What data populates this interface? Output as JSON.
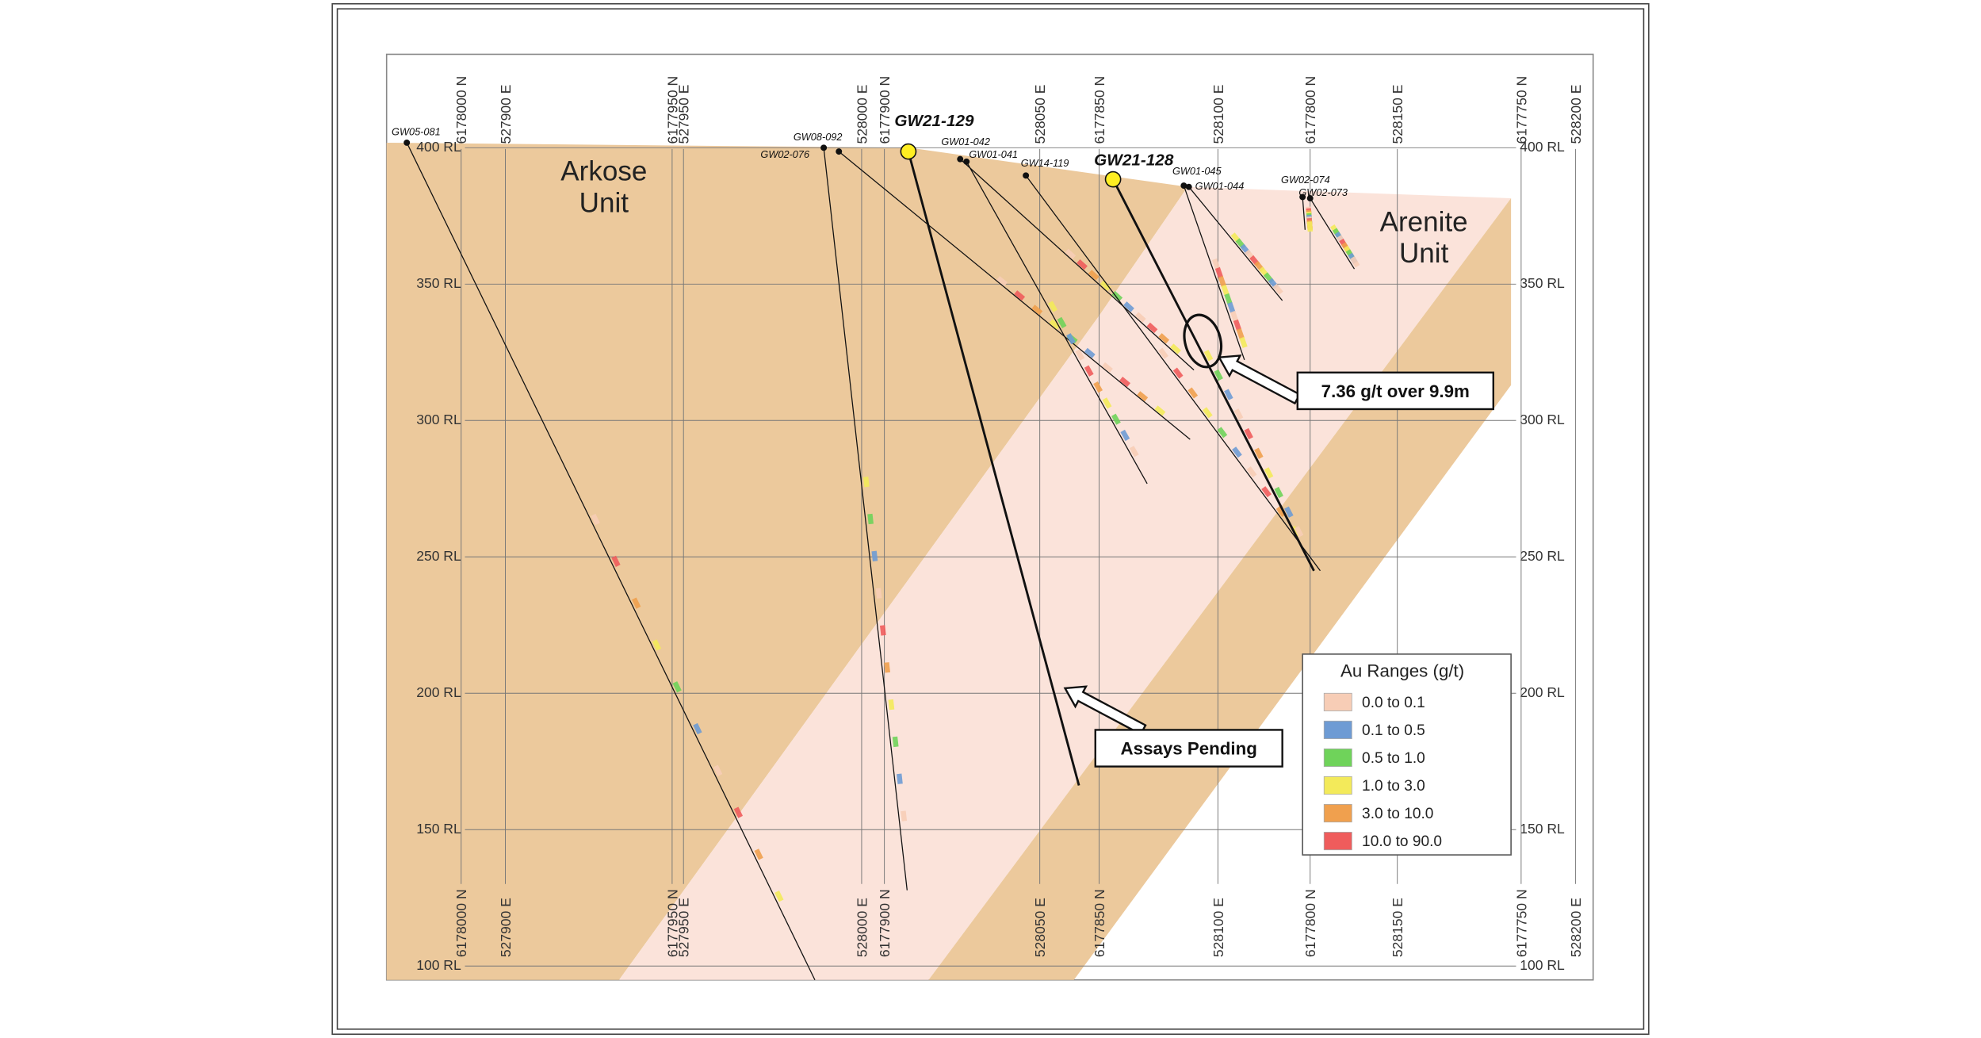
{
  "units": [
    {
      "lines": [
        "Arkose",
        "Unit"
      ]
    },
    {
      "lines": [
        "Arenite",
        "Unit"
      ]
    }
  ],
  "elevations": [
    "400 RL",
    "350 RL",
    "300 RL",
    "250 RL",
    "200 RL",
    "150 RL",
    "100 RL"
  ],
  "grid_labels": [
    "6178000 N",
    "527900 E",
    "6177950 N",
    "527950 E",
    "528000 E",
    "6177900 N",
    "528050 E",
    "6177850 N",
    "528100 E",
    "6177800 N",
    "528150 E",
    "6177750 N",
    "528200 E"
  ],
  "holes": [
    "GW05-081",
    "GW08-092",
    "GW02-076",
    "GW21-129",
    "GW01-042",
    "GW01-041",
    "GW14-119",
    "GW21-128",
    "GW01-045",
    "GW01-044",
    "GW02-074",
    "GW02-073"
  ],
  "legend": {
    "title": "Au Ranges (g/t)",
    "items": [
      {
        "label": "0.0 to 0.1",
        "color": "#f7cdb6"
      },
      {
        "label": "0.1 to 0.5",
        "color": "#6e9bd4"
      },
      {
        "label": "0.5 to 1.0",
        "color": "#6fd35a"
      },
      {
        "label": "1.0 to 3.0",
        "color": "#f3ea5a"
      },
      {
        "label": "3.0 to 10.0",
        "color": "#f0a04e"
      },
      {
        "label": "10.0 to 90.0",
        "color": "#ef5c5c"
      }
    ]
  },
  "callouts": [
    "7.36 g/t over 9.9m",
    "Assays Pending"
  ]
}
